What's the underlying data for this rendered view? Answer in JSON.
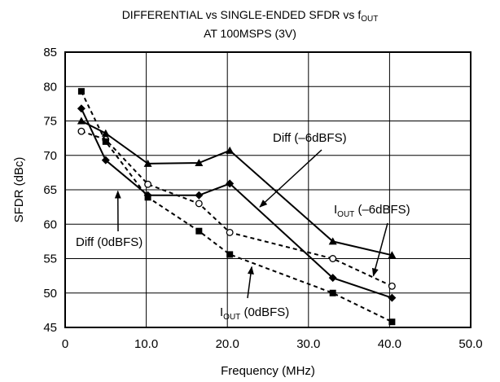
{
  "chart_data": {
    "type": "line",
    "title": {
      "line1_prefix": "DIFFERENTIAL vs SINGLE-ENDED SFDR vs f",
      "line1_sub": "OUT",
      "line2": "AT 100MSPS (3V)"
    },
    "xlabel": "Frequency (MHz)",
    "ylabel": "SFDR (dBc)",
    "xlim": [
      0,
      50
    ],
    "ylim": [
      45,
      85
    ],
    "x_ticks": [
      0,
      10,
      20,
      30,
      40,
      50
    ],
    "x_tick_labels": [
      "0",
      "10.0",
      "20.0",
      "30.0",
      "40.0",
      "50.0"
    ],
    "y_ticks": [
      45,
      50,
      55,
      60,
      65,
      70,
      75,
      80,
      85
    ],
    "y_tick_labels": [
      "45",
      "50",
      "55",
      "60",
      "65",
      "70",
      "75",
      "80",
      "85"
    ],
    "grid": true,
    "series": [
      {
        "name": "Diff (–6dBFS)",
        "line": "solid",
        "marker": "triangle",
        "points": [
          [
            2,
            75.0
          ],
          [
            5,
            73.2
          ],
          [
            10.2,
            68.8
          ],
          [
            16.5,
            68.9
          ],
          [
            20.3,
            70.7
          ],
          [
            33,
            57.5
          ],
          [
            40.3,
            55.5
          ]
        ]
      },
      {
        "name": "Diff (0dBFS)",
        "line": "solid",
        "marker": "diamond",
        "points": [
          [
            2,
            76.8
          ],
          [
            5,
            69.3
          ],
          [
            10.2,
            64.2
          ],
          [
            16.5,
            64.2
          ],
          [
            20.3,
            65.9
          ],
          [
            33,
            52.2
          ],
          [
            40.3,
            49.3
          ]
        ]
      },
      {
        "name": "I_OUT (–6dBFS)",
        "line": "dashed",
        "marker": "open-circle",
        "points": [
          [
            2,
            73.5
          ],
          [
            5,
            72.3
          ],
          [
            10.2,
            65.8
          ],
          [
            16.5,
            63.0
          ],
          [
            20.3,
            58.8
          ],
          [
            33,
            55.0
          ],
          [
            40.3,
            51.0
          ]
        ]
      },
      {
        "name": "I_OUT (0dBFS)",
        "line": "dashed",
        "marker": "square",
        "points": [
          [
            2,
            79.3
          ],
          [
            5,
            72.0
          ],
          [
            10.2,
            63.9
          ],
          [
            16.5,
            59.0
          ],
          [
            20.3,
            55.6
          ],
          [
            33,
            50.0
          ],
          [
            40.3,
            45.8
          ]
        ]
      }
    ],
    "annotations": [
      {
        "text": "Diff (–6dBFS)",
        "prefix": "Diff (–6dBFS)",
        "sub": "",
        "suffix": "",
        "arrow_to": [
          24,
          62.5
        ]
      },
      {
        "text": "Diff (0dBFS)",
        "prefix": "Diff (0dBFS)",
        "sub": "",
        "suffix": "",
        "arrow_to": [
          6.5,
          64.8
        ]
      },
      {
        "text": "IOUT (–6dBFS)",
        "prefix": "I",
        "sub": "OUT",
        "suffix": " (–6dBFS)",
        "arrow_to": [
          38,
          52.5
        ]
      },
      {
        "text": "IOUT (0dBFS)",
        "prefix": "I",
        "sub": "OUT",
        "suffix": " (0dBFS)",
        "arrow_to": [
          23,
          53.8
        ]
      }
    ]
  }
}
